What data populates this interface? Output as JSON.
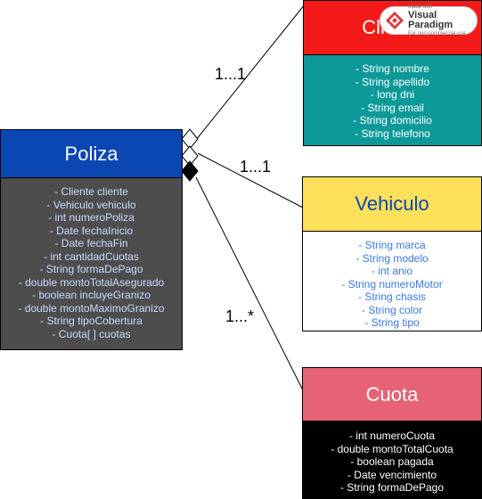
{
  "diagram": {
    "classes": {
      "poliza": {
        "name": "Poliza",
        "header_color": "#0a47b3",
        "body_color": "#4d4d4d",
        "text_color": "#ffffff",
        "attr_color": "#c8dcff",
        "attributes": [
          "- Cliente cliente",
          "- Vehiculo vehiculo",
          "- int numeroPoliza",
          "- Date fechaInicio",
          "- Date fechaFin",
          "- int cantidadCuotas",
          "- String formaDePago",
          "- double montoTotalAsegurado",
          "- boolean incluyeGranizo",
          "- double montoMaximoGranizo",
          "- String tipoCobertura",
          "- Cuota[ ] cuotas"
        ]
      },
      "cliente": {
        "name": "Cliente",
        "header_color": "#f51a1a",
        "body_color": "#0e9999",
        "text_color": "#ffffff",
        "attr_color": "#ffffff",
        "attributes": [
          "- String nombre",
          "- String apellido",
          "- long dni",
          "- String email",
          "- String domicilio",
          "- String telefono"
        ]
      },
      "vehiculo": {
        "name": "Vehiculo",
        "header_color": "#ffe05a",
        "body_color": "#ffffff",
        "text_color": "#0a47b3",
        "attr_color": "#3b78e7",
        "attributes": [
          "- String marca",
          "- String modelo",
          "- int anio",
          "- String numeroMotor",
          "- String chasis",
          "- String color",
          "- String tipo"
        ]
      },
      "cuota": {
        "name": "Cuota",
        "header_color": "#e66375",
        "body_color": "#000000",
        "text_color": "#ffffff",
        "attr_color": "#ffffff",
        "attributes": [
          "- int numeroCuota",
          "- double montoTotalCuota",
          "- boolean pagada",
          "- Date vencimiento",
          "- String formaDePago"
        ]
      }
    },
    "associations": {
      "poliza_cliente": {
        "multiplicity": "1...1",
        "type": "aggregation"
      },
      "poliza_vehiculo": {
        "multiplicity": "1...1",
        "type": "aggregation"
      },
      "poliza_cuota": {
        "multiplicity": "1...*",
        "type": "composition"
      }
    }
  },
  "watermark": {
    "line1": "Made with",
    "line2": "Visual Paradigm",
    "line3": "For non-commercial use",
    "icon": "visual-paradigm-logo-icon"
  }
}
